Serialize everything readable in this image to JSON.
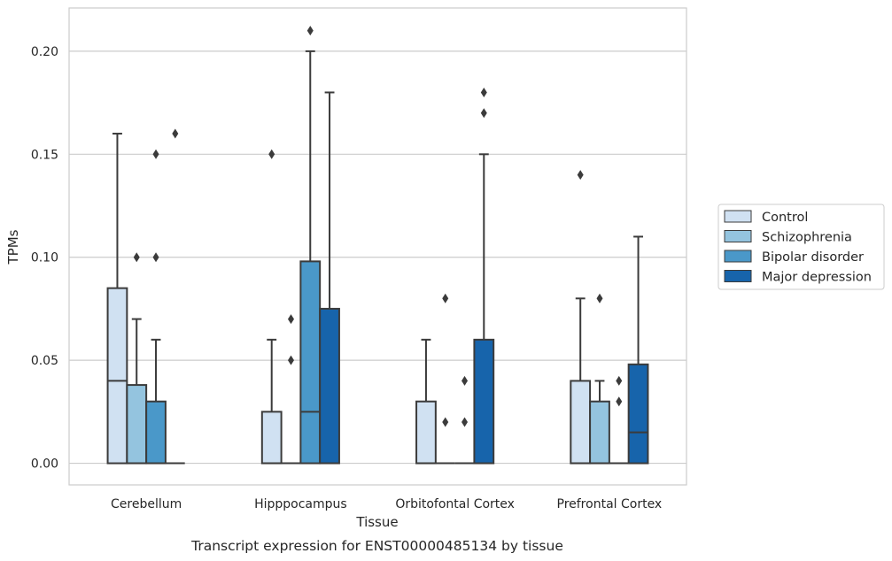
{
  "chart_data": {
    "type": "box",
    "caption": "Transcript expression for ENST00000485134 by tissue",
    "xlabel": "Tissue",
    "ylabel": "TPMs",
    "ylim": [
      -0.0105,
      0.221
    ],
    "yticks": [
      "0.00",
      "0.05",
      "0.10",
      "0.15",
      "0.20"
    ],
    "grid": true,
    "legend_position": "right",
    "categories": [
      "Cerebellum",
      "Hipppocampus",
      "Orbitofontal Cortex",
      "Prefrontal Cortex"
    ],
    "series": [
      {
        "name": "Control",
        "color": "#d0e1f2",
        "boxes": [
          {
            "q1": 0.0,
            "median": 0.04,
            "q3": 0.085,
            "whisker_low": 0.0,
            "whisker_high": 0.16,
            "outliers": []
          },
          {
            "q1": 0.0,
            "median": 0.0,
            "q3": 0.025,
            "whisker_low": 0.0,
            "whisker_high": 0.06,
            "outliers": [
              0.15
            ]
          },
          {
            "q1": 0.0,
            "median": 0.0,
            "q3": 0.03,
            "whisker_low": 0.0,
            "whisker_high": 0.06,
            "outliers": []
          },
          {
            "q1": 0.0,
            "median": 0.0,
            "q3": 0.04,
            "whisker_low": 0.0,
            "whisker_high": 0.08,
            "outliers": [
              0.14
            ]
          }
        ]
      },
      {
        "name": "Schizophrenia",
        "color": "#94c4df",
        "boxes": [
          {
            "q1": 0.0,
            "median": 0.0,
            "q3": 0.038,
            "whisker_low": 0.0,
            "whisker_high": 0.07,
            "outliers": [
              0.1
            ]
          },
          {
            "q1": 0.0,
            "median": 0.0,
            "q3": 0.0,
            "whisker_low": 0.0,
            "whisker_high": 0.0,
            "outliers": [
              0.05,
              0.07
            ]
          },
          {
            "q1": 0.0,
            "median": 0.0,
            "q3": 0.0,
            "whisker_low": 0.0,
            "whisker_high": 0.0,
            "outliers": [
              0.02,
              0.08
            ]
          },
          {
            "q1": 0.0,
            "median": 0.0,
            "q3": 0.03,
            "whisker_low": 0.0,
            "whisker_high": 0.04,
            "outliers": [
              0.08
            ]
          }
        ]
      },
      {
        "name": "Bipolar disorder",
        "color": "#4a98c9",
        "boxes": [
          {
            "q1": 0.0,
            "median": 0.0,
            "q3": 0.03,
            "whisker_low": 0.0,
            "whisker_high": 0.06,
            "outliers": [
              0.1,
              0.15
            ]
          },
          {
            "q1": 0.0,
            "median": 0.025,
            "q3": 0.098,
            "whisker_low": 0.0,
            "whisker_high": 0.2,
            "outliers": [
              0.21
            ]
          },
          {
            "q1": 0.0,
            "median": 0.0,
            "q3": 0.0,
            "whisker_low": 0.0,
            "whisker_high": 0.0,
            "outliers": [
              0.02,
              0.04
            ]
          },
          {
            "q1": 0.0,
            "median": 0.0,
            "q3": 0.0,
            "whisker_low": 0.0,
            "whisker_high": 0.0,
            "outliers": [
              0.03,
              0.04
            ]
          }
        ]
      },
      {
        "name": "Major depression",
        "color": "#1764ab",
        "boxes": [
          {
            "q1": 0.0,
            "median": 0.0,
            "q3": 0.0,
            "whisker_low": 0.0,
            "whisker_high": 0.0,
            "outliers": [
              0.16
            ]
          },
          {
            "q1": 0.0,
            "median": 0.0,
            "q3": 0.075,
            "whisker_low": 0.0,
            "whisker_high": 0.18,
            "outliers": []
          },
          {
            "q1": 0.0,
            "median": 0.0,
            "q3": 0.06,
            "whisker_low": 0.0,
            "whisker_high": 0.15,
            "outliers": [
              0.17,
              0.18
            ]
          },
          {
            "q1": 0.0,
            "median": 0.015,
            "q3": 0.048,
            "whisker_low": 0.0,
            "whisker_high": 0.11,
            "outliers": []
          }
        ]
      }
    ]
  }
}
